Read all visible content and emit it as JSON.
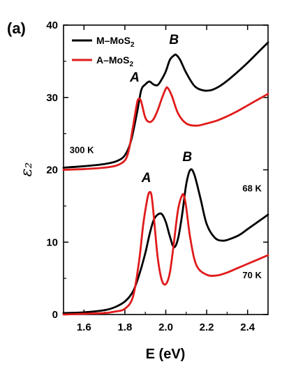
{
  "chart_data": {
    "type": "line",
    "panel_label": "(a)",
    "xlabel": "E (eV)",
    "ylabel": "ε₂",
    "xlim": [
      1.5,
      2.5
    ],
    "ylim": [
      0,
      40
    ],
    "xticks": [
      "1.6",
      "1.8",
      "2.0",
      "2.2",
      "2.4"
    ],
    "yticks": [
      "0",
      "10",
      "20",
      "30",
      "40"
    ],
    "legend": {
      "placement": "top-left",
      "entries": [
        {
          "text": "M–MoS",
          "sub": "2",
          "color": "#000000"
        },
        {
          "text": "A–MoS",
          "sub": "2",
          "color": "#e01b1b"
        }
      ]
    },
    "series": [
      {
        "name": "M-MoS2 (300 K)",
        "color": "#000000",
        "x": [
          1.5,
          1.6,
          1.7,
          1.76,
          1.8,
          1.83,
          1.86,
          1.88,
          1.9,
          1.92,
          1.94,
          1.96,
          1.98,
          2.0,
          2.02,
          2.04,
          2.05,
          2.07,
          2.1,
          2.14,
          2.18,
          2.22,
          2.26,
          2.3,
          2.35,
          2.4,
          2.45,
          2.5
        ],
        "y": [
          20.3,
          20.5,
          20.8,
          21.2,
          22.0,
          24.0,
          28.0,
          31.0,
          31.8,
          32.2,
          31.8,
          31.7,
          32.5,
          33.6,
          35.2,
          35.8,
          35.9,
          35.2,
          33.4,
          31.6,
          31.0,
          31.0,
          31.5,
          32.3,
          33.5,
          34.8,
          36.2,
          37.6
        ]
      },
      {
        "name": "A-MoS2 (300 K)",
        "color": "#e01b1b",
        "x": [
          1.5,
          1.6,
          1.7,
          1.76,
          1.8,
          1.82,
          1.84,
          1.86,
          1.87,
          1.88,
          1.9,
          1.92,
          1.94,
          1.96,
          1.98,
          2.0,
          2.01,
          2.03,
          2.06,
          2.1,
          2.15,
          2.2,
          2.25,
          2.3,
          2.35,
          2.4,
          2.45,
          2.5
        ],
        "y": [
          20.0,
          20.1,
          20.3,
          20.6,
          21.3,
          22.8,
          26.0,
          29.3,
          29.8,
          29.4,
          27.2,
          26.6,
          27.0,
          28.2,
          29.8,
          31.2,
          31.3,
          30.2,
          27.8,
          26.4,
          26.1,
          26.4,
          26.8,
          27.4,
          28.1,
          28.9,
          29.7,
          30.5
        ]
      },
      {
        "name": "M-MoS2 (68 K)",
        "color": "#000000",
        "x": [
          1.5,
          1.6,
          1.7,
          1.75,
          1.8,
          1.84,
          1.87,
          1.9,
          1.92,
          1.94,
          1.96,
          1.98,
          2.0,
          2.02,
          2.04,
          2.06,
          2.08,
          2.1,
          2.12,
          2.14,
          2.17,
          2.2,
          2.24,
          2.28,
          2.32,
          2.36,
          2.4,
          2.45,
          2.5
        ],
        "y": [
          0.2,
          0.3,
          0.6,
          1.0,
          1.8,
          3.2,
          5.5,
          8.5,
          11.0,
          13.0,
          13.8,
          13.9,
          12.8,
          10.8,
          9.3,
          10.5,
          13.8,
          18.0,
          20.0,
          19.3,
          16.0,
          12.5,
          10.6,
          10.2,
          10.5,
          11.0,
          11.8,
          12.8,
          13.8
        ]
      },
      {
        "name": "A-MoS2 (70 K)",
        "color": "#e01b1b",
        "x": [
          1.5,
          1.6,
          1.7,
          1.75,
          1.8,
          1.84,
          1.87,
          1.89,
          1.91,
          1.92,
          1.93,
          1.94,
          1.96,
          1.98,
          2.0,
          2.02,
          2.04,
          2.06,
          2.08,
          2.09,
          2.1,
          2.12,
          2.15,
          2.2,
          2.25,
          2.3,
          2.35,
          2.4,
          2.45,
          2.5
        ],
        "y": [
          0.0,
          0.1,
          0.2,
          0.4,
          0.8,
          2.5,
          7.5,
          12.5,
          16.0,
          16.9,
          16.5,
          14.0,
          8.0,
          4.8,
          4.2,
          5.8,
          10.0,
          14.5,
          16.5,
          16.3,
          14.8,
          10.5,
          6.8,
          5.5,
          5.4,
          5.8,
          6.4,
          7.0,
          7.6,
          8.2
        ]
      }
    ],
    "annotations": [
      {
        "text": "A",
        "kind": "peak",
        "x": 1.848,
        "y": 32.2
      },
      {
        "text": "B",
        "kind": "peak",
        "x": 2.04,
        "y": 37.4
      },
      {
        "text": "A",
        "kind": "peak",
        "x": 1.905,
        "y": 18.3
      },
      {
        "text": "B",
        "kind": "peak",
        "x": 2.105,
        "y": 21.2
      },
      {
        "text": "300 K",
        "kind": "temp",
        "x": 1.53,
        "y": 22.3
      },
      {
        "text": "68 K",
        "kind": "temp",
        "x": 2.375,
        "y": 17.0
      },
      {
        "text": "70 K",
        "kind": "temp",
        "x": 2.375,
        "y": 5.0
      }
    ],
    "grid": false
  }
}
